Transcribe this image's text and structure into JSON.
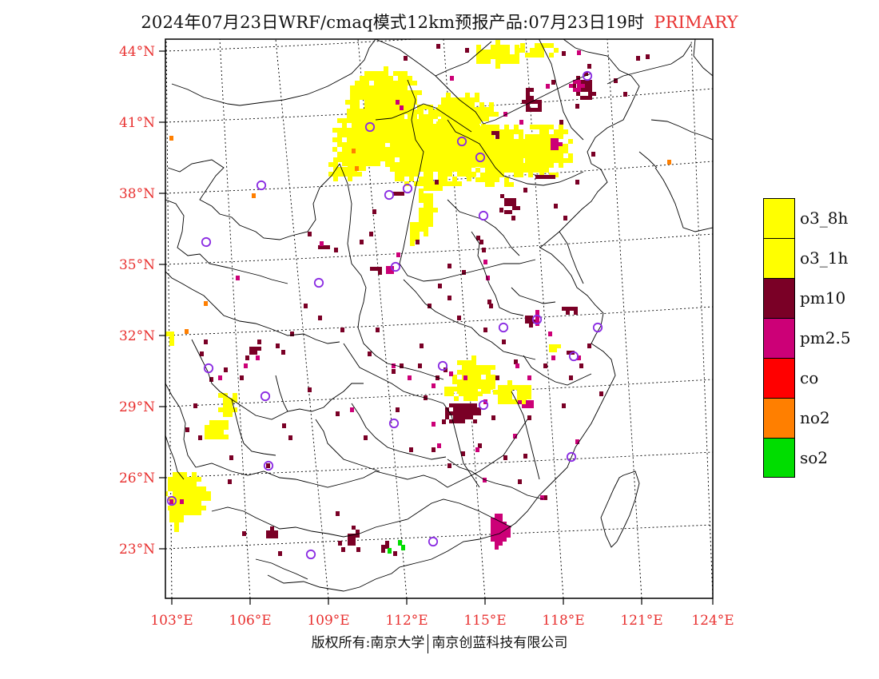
{
  "title": {
    "main": "2024年07月23日WRF/cmaq模式12km预报产品:07月23日19时",
    "tag": "PRIMARY",
    "tag_color": "#e8302f"
  },
  "axes": {
    "lat_labels": [
      "44°N",
      "41°N",
      "38°N",
      "35°N",
      "32°N",
      "29°N",
      "26°N",
      "23°N"
    ],
    "lon_labels": [
      "103°E",
      "106°E",
      "109°E",
      "112°E",
      "115°E",
      "118°E",
      "121°E",
      "124°E"
    ],
    "label_color": "#e8302f",
    "grid": "dotted"
  },
  "legend": {
    "placement": "right",
    "items": [
      {
        "label": "o3_8h",
        "color": "#ffff00"
      },
      {
        "label": "o3_1h",
        "color": "#ffff00"
      },
      {
        "label": "pm10",
        "color": "#7a0026"
      },
      {
        "label": "pm2.5",
        "color": "#cc0077"
      },
      {
        "label": "co",
        "color": "#ff0000"
      },
      {
        "label": "no2",
        "color": "#ff7f00"
      },
      {
        "label": "so2",
        "color": "#00dd00"
      }
    ]
  },
  "station_marker_color": "#8a2be2",
  "footer": {
    "left": "版权所有:南京大学",
    "right": "南京创蓝科技有限公司"
  }
}
